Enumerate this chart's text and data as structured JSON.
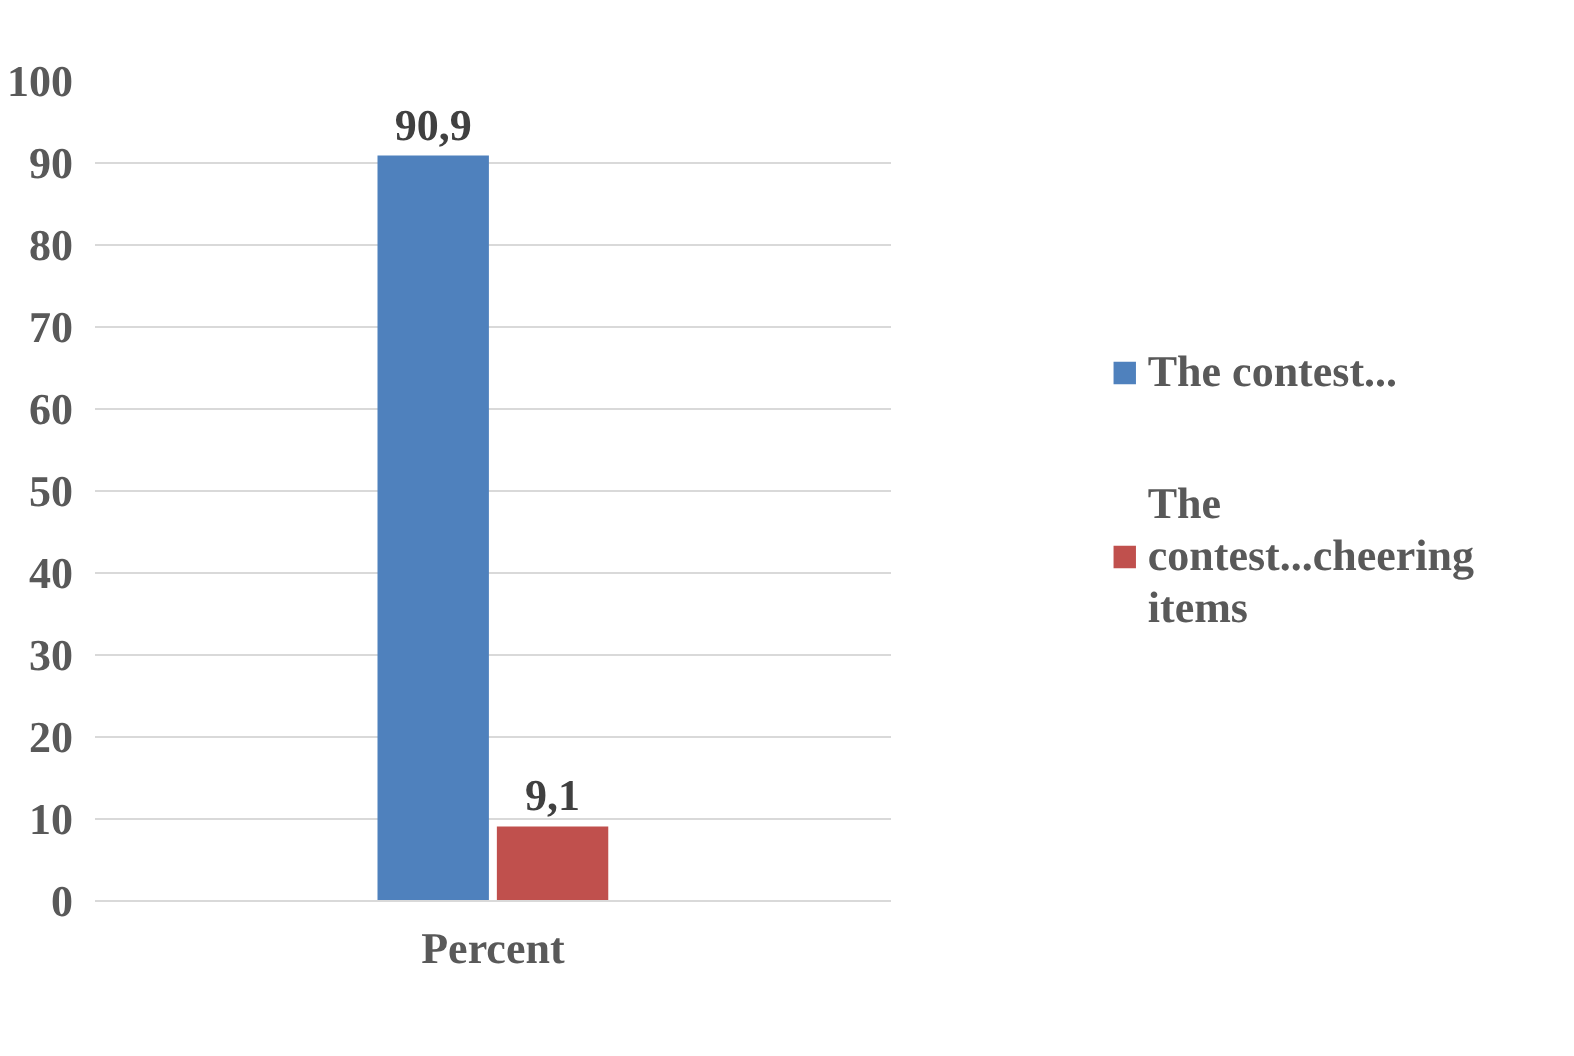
{
  "chart_data": {
    "type": "bar",
    "categories": [
      "Percent"
    ],
    "series": [
      {
        "name": "The contest...",
        "color": "#4f81bd",
        "values": [
          90.9
        ],
        "value_labels": [
          "90,9"
        ]
      },
      {
        "name": "The contest...cheering items",
        "color": "#c0504d",
        "values": [
          9.1
        ],
        "value_labels": [
          "9,1"
        ]
      }
    ],
    "ylim": [
      0,
      100
    ],
    "yticks": [
      0,
      10,
      20,
      30,
      40,
      50,
      60,
      70,
      80,
      90,
      100
    ],
    "grid": "y",
    "legend": "right",
    "data_labels": true
  }
}
